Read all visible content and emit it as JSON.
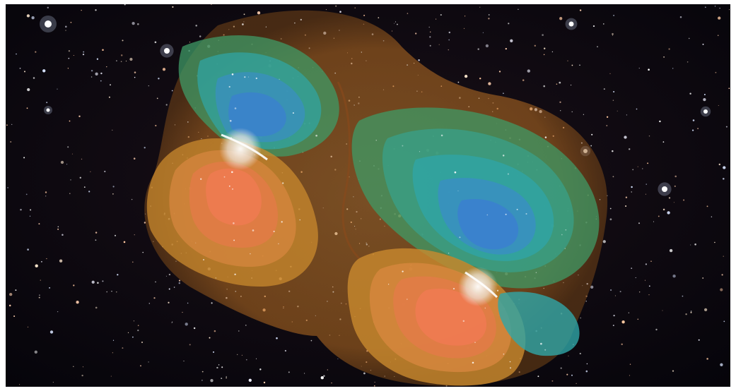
{
  "image": {
    "subject": "spacetime-field-visualization",
    "background": "starfield",
    "colors": {
      "space": "#0a0810",
      "warm": "#e8703a",
      "amber": "#c98a2e",
      "green": "#3aa87a",
      "teal": "#2fa6a8",
      "blue": "#3b7fd0",
      "core": "#f2f2f0"
    }
  }
}
